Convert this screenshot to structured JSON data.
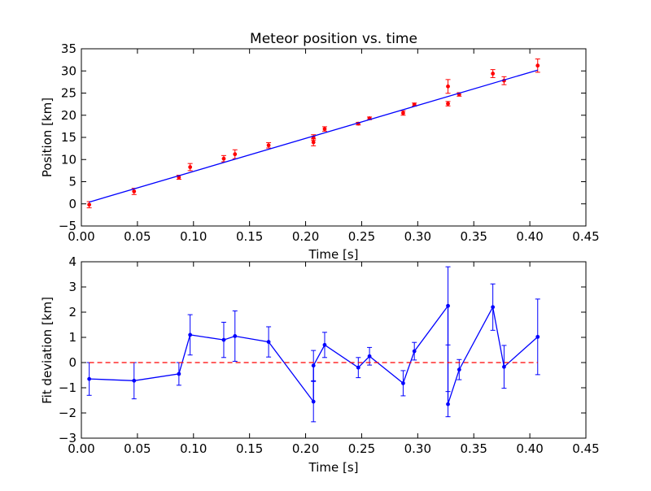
{
  "chart_data": [
    {
      "type": "scatter",
      "title": "Meteor position vs. time",
      "xlabel": "Time [s]",
      "ylabel": "Position [km]",
      "xlim": [
        0.0,
        0.45
      ],
      "ylim": [
        -5,
        35
      ],
      "xticks": [
        "0.00",
        "0.05",
        "0.10",
        "0.15",
        "0.20",
        "0.25",
        "0.30",
        "0.35",
        "0.40",
        "0.45"
      ],
      "yticks": [
        "−5",
        "0",
        "5",
        "10",
        "15",
        "20",
        "25",
        "30",
        "35"
      ],
      "series": [
        {
          "style": "points-with-errorbars",
          "color": "#ff0000",
          "x": [
            0.007,
            0.047,
            0.087,
            0.097,
            0.127,
            0.137,
            0.167,
            0.207,
            0.207,
            0.217,
            0.247,
            0.257,
            0.287,
            0.297,
            0.327,
            0.327,
            0.337,
            0.367,
            0.377,
            0.407
          ],
          "y": [
            -0.2,
            2.8,
            6.0,
            8.3,
            10.2,
            11.2,
            13.2,
            15.0,
            13.9,
            16.9,
            18.1,
            19.3,
            20.5,
            22.4,
            26.5,
            22.6,
            24.7,
            29.4,
            27.8,
            31.2
          ],
          "yerr": [
            0.7,
            0.7,
            0.45,
            0.8,
            0.7,
            1.0,
            0.6,
            0.6,
            0.8,
            0.5,
            0.3,
            0.3,
            0.5,
            0.35,
            1.55,
            0.5,
            0.4,
            0.9,
            0.9,
            1.5
          ]
        },
        {
          "style": "line",
          "color": "#0000ff",
          "x": [
            0.007,
            0.407
          ],
          "y": [
            0.4,
            30.2
          ]
        }
      ]
    },
    {
      "type": "line",
      "xlabel": "Time [s]",
      "ylabel": "Fit deviation [km]",
      "xlim": [
        0.0,
        0.45
      ],
      "ylim": [
        -3,
        4
      ],
      "xticks": [
        "0.00",
        "0.05",
        "0.10",
        "0.15",
        "0.20",
        "0.25",
        "0.30",
        "0.35",
        "0.40",
        "0.45"
      ],
      "yticks": [
        "−3",
        "−2",
        "−1",
        "0",
        "1",
        "2",
        "3",
        "4"
      ],
      "series": [
        {
          "style": "line-points-with-errorbars",
          "color": "#0000ff",
          "x": [
            0.007,
            0.047,
            0.087,
            0.097,
            0.127,
            0.137,
            0.167,
            0.207,
            0.207,
            0.217,
            0.247,
            0.257,
            0.287,
            0.297,
            0.327,
            0.327,
            0.337,
            0.367,
            0.377,
            0.407
          ],
          "y": [
            -0.65,
            -0.72,
            -0.45,
            1.1,
            0.9,
            1.05,
            0.82,
            -1.55,
            -0.12,
            0.7,
            -0.2,
            0.25,
            -0.82,
            0.45,
            2.25,
            -1.65,
            -0.28,
            2.2,
            -0.17,
            1.02
          ],
          "yerr": [
            0.65,
            0.72,
            0.45,
            0.8,
            0.7,
            1.0,
            0.6,
            0.8,
            0.6,
            0.5,
            0.4,
            0.35,
            0.5,
            0.35,
            1.55,
            0.5,
            0.4,
            0.92,
            0.85,
            1.5
          ]
        },
        {
          "style": "dashed-line",
          "color": "#ff0000",
          "x": [
            0.007,
            0.407
          ],
          "y": [
            0,
            0
          ]
        }
      ]
    }
  ]
}
